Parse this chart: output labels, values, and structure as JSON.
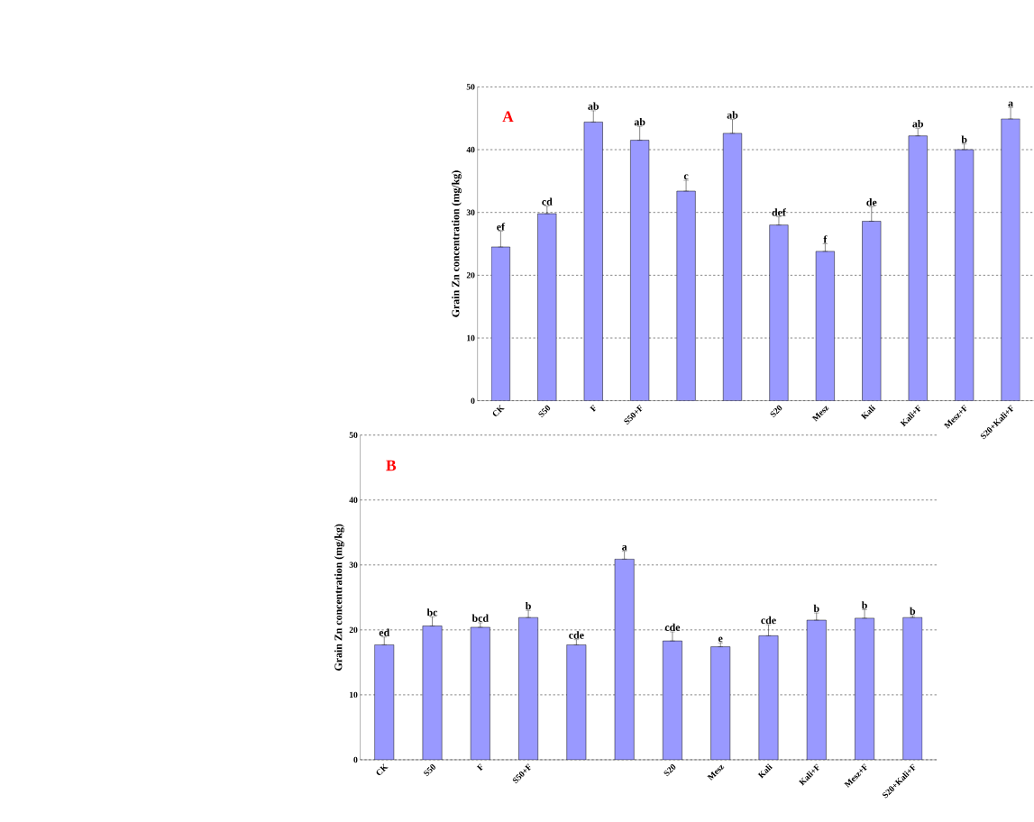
{
  "chart_data": [
    {
      "type": "bar",
      "annotations": [
        "A"
      ],
      "ylabel": "Grain Zn concentration (mg/kg)",
      "categories": [
        "CK",
        "S50",
        "F",
        "S50+F",
        null,
        null,
        "S20",
        "Mesz",
        "Kali",
        "Kali+F",
        "Mesz+F",
        "S20+Kali+F"
      ],
      "values": [
        24.5,
        29.8,
        44.4,
        41.5,
        33.4,
        42.6,
        28.0,
        23.8,
        28.6,
        42.2,
        40.0,
        44.9
      ],
      "errors": [
        [
          24.5,
          27.0
        ],
        [
          29.8,
          31.0
        ],
        [
          44.4,
          46.2
        ],
        [
          41.5,
          43.7
        ],
        [
          33.4,
          35.1
        ],
        [
          42.6,
          44.8
        ],
        [
          28.0,
          29.3
        ],
        [
          23.8,
          25.0
        ],
        [
          28.6,
          30.9
        ],
        [
          42.2,
          43.4
        ],
        [
          40.0,
          40.9
        ],
        [
          44.9,
          46.7
        ]
      ],
      "value_labels": [
        "ef",
        "cd",
        "ab",
        "ab",
        "c",
        "ab",
        "def",
        "f",
        "de",
        "ab",
        "b",
        "a"
      ],
      "color": "#9999ff",
      "ylim": [
        0,
        50
      ],
      "yticks": [
        0,
        10,
        20,
        30,
        40,
        50
      ],
      "grid": "y"
    },
    {
      "type": "bar",
      "annotations": [
        "B"
      ],
      "ylabel": "Grain Zn concentration (mg/kg)",
      "categories": [
        "CK",
        "S50",
        "F",
        "S50+F",
        null,
        null,
        "S20",
        "Mesz",
        "Kali",
        "Kali+F",
        "Mesz+F",
        "S20+Kali+F"
      ],
      "values": [
        17.7,
        20.6,
        20.4,
        21.9,
        17.7,
        30.9,
        18.3,
        17.4,
        19.1,
        21.5,
        21.8,
        21.9
      ],
      "errors": [
        [
          17.7,
          18.9
        ],
        [
          20.6,
          22.0
        ],
        [
          20.4,
          21.1
        ],
        [
          21.9,
          23.0
        ],
        [
          17.7,
          18.5
        ],
        [
          30.9,
          32.1
        ],
        [
          18.3,
          19.7
        ],
        [
          17.4,
          18.0
        ],
        [
          19.1,
          20.8
        ],
        [
          21.5,
          22.6
        ],
        [
          21.8,
          23.1
        ],
        [
          21.9,
          22.2
        ]
      ],
      "value_labels": [
        "ed",
        "bc",
        "bcd",
        "b",
        "cde",
        "a",
        "cde",
        "e",
        "cde",
        "b",
        "b",
        "b"
      ],
      "color": "#9999ff",
      "ylim": [
        0,
        50
      ],
      "yticks": [
        0,
        10,
        20,
        30,
        40,
        50
      ],
      "grid": "y"
    }
  ]
}
